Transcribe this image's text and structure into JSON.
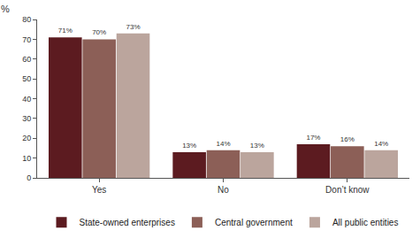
{
  "chart_data": {
    "type": "bar",
    "y_label": "%",
    "categories": [
      "Yes",
      "No",
      "Don’t know"
    ],
    "series": [
      {
        "name": "State-owned enterprises",
        "color": "#5c1b20",
        "values": [
          71,
          13,
          17
        ],
        "value_labels": [
          "71%",
          "13%",
          "17%"
        ]
      },
      {
        "name": "Central government",
        "color": "#8c5f57",
        "values": [
          70,
          14,
          16
        ],
        "value_labels": [
          "70%",
          "14%",
          "16%"
        ]
      },
      {
        "name": "All public entities",
        "color": "#bba59d",
        "values": [
          73,
          13,
          14
        ],
        "value_labels": [
          "73%",
          "13%",
          "14%"
        ]
      }
    ],
    "ylim": [
      0,
      80
    ],
    "yticks": [
      0,
      10,
      20,
      30,
      40,
      50,
      60,
      70,
      80
    ],
    "grid": false,
    "legend": "bottom",
    "data_labels": true
  }
}
